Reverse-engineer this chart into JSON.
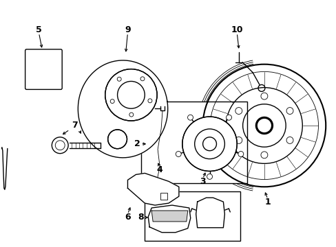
{
  "background_color": "#ffffff",
  "line_color": "#000000",
  "lw": 1.0,
  "tlw": 0.6,
  "fig_width": 4.89,
  "fig_height": 3.6,
  "dpi": 100
}
